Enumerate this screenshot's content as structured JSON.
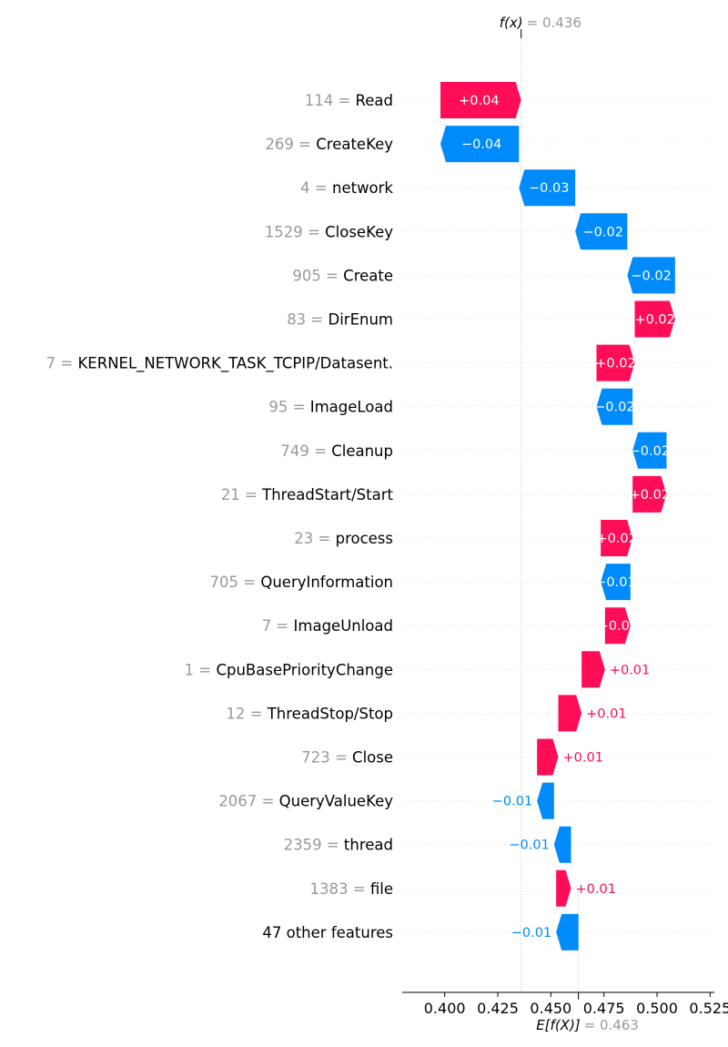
{
  "chart_data": {
    "type": "waterfall",
    "fx_label": "f(x)",
    "fx_value": "= 0.436",
    "fx": 0.436,
    "efx_label": "E[f(X)]",
    "efx_value": "= 0.463",
    "base_value": 0.463,
    "xlim": [
      0.38,
      0.527
    ],
    "x_ticks": [
      0.4,
      0.425,
      0.45,
      0.475,
      0.5,
      0.525
    ],
    "x_tick_labels": [
      "0.400",
      "0.425",
      "0.450",
      "0.475",
      "0.500",
      "0.525"
    ],
    "colors": {
      "positive": "#ff0d57",
      "negative": "#008bfb",
      "value_gray": "#999999",
      "text": "#000000"
    },
    "features": [
      {
        "value": "114",
        "name": "Read",
        "start": 0.398,
        "end": 0.436,
        "label": "+0.04"
      },
      {
        "value": "269",
        "name": "CreateKey",
        "start": 0.435,
        "end": 0.398,
        "label": "−0.04"
      },
      {
        "value": "4",
        "name": "network",
        "start": 0.4615,
        "end": 0.435,
        "label": "−0.03"
      },
      {
        "value": "1529",
        "name": "CloseKey",
        "start": 0.486,
        "end": 0.4615,
        "label": "−0.02"
      },
      {
        "value": "905",
        "name": "Create",
        "start": 0.5085,
        "end": 0.486,
        "label": "−0.02"
      },
      {
        "value": "83",
        "name": "DirEnum",
        "start": 0.4895,
        "end": 0.5085,
        "label": "+0.02"
      },
      {
        "value": "7",
        "name": "KERNEL_NETWORK_TASK_TCPIP/Datasent.",
        "start": 0.4715,
        "end": 0.4895,
        "label": "+0.02"
      },
      {
        "value": "95",
        "name": "ImageLoad",
        "start": 0.4885,
        "end": 0.4715,
        "label": "−0.02"
      },
      {
        "value": "749",
        "name": "Cleanup",
        "start": 0.5045,
        "end": 0.4885,
        "label": "−0.02"
      },
      {
        "value": "21",
        "name": "ThreadStart/Start",
        "start": 0.4885,
        "end": 0.5045,
        "label": "+0.02"
      },
      {
        "value": "23",
        "name": "process",
        "start": 0.4735,
        "end": 0.4885,
        "label": "+0.02"
      },
      {
        "value": "705",
        "name": "QueryInformation",
        "start": 0.4875,
        "end": 0.4735,
        "label": "−0.01"
      },
      {
        "value": "7",
        "name": "ImageUnload",
        "start": 0.4755,
        "end": 0.4875,
        "label": "+0.01"
      },
      {
        "value": "1",
        "name": "CpuBasePriorityChange",
        "start": 0.4645,
        "end": 0.4755,
        "label": "+0.01"
      },
      {
        "value": "12",
        "name": "ThreadStop/Stop",
        "start": 0.4535,
        "end": 0.4645,
        "label": "+0.01"
      },
      {
        "value": "723",
        "name": "Close",
        "start": 0.4435,
        "end": 0.4535,
        "label": "+0.01"
      },
      {
        "value": "2067",
        "name": "QueryValueKey",
        "start": 0.4515,
        "end": 0.4435,
        "label": "−0.01"
      },
      {
        "value": "2359",
        "name": "thread",
        "start": 0.4595,
        "end": 0.4515,
        "label": "−0.01"
      },
      {
        "value": "1383",
        "name": "file",
        "start": 0.4525,
        "end": 0.4595,
        "label": "+0.01"
      },
      {
        "value": "",
        "name": "47 other features",
        "start": 0.463,
        "end": 0.4525,
        "label": "−0.01"
      }
    ]
  }
}
